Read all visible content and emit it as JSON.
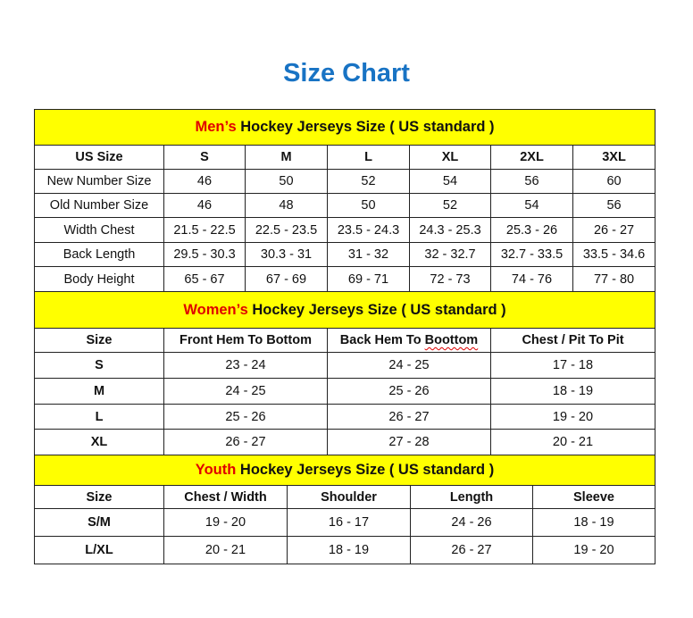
{
  "title": "Size Chart",
  "colors": {
    "title": "#1873c4",
    "header_bg": "#ffff00",
    "accent_text": "#e00000"
  },
  "mens": {
    "heading_accent": "Men’s",
    "heading_rest": " Hockey Jerseys Size ( US standard )",
    "columns": [
      "US Size",
      "S",
      "M",
      "L",
      "XL",
      "2XL",
      "3XL"
    ],
    "rows": [
      [
        "New Number Size",
        "46",
        "50",
        "52",
        "54",
        "56",
        "60"
      ],
      [
        "Old Number Size",
        "46",
        "48",
        "50",
        "52",
        "54",
        "56"
      ],
      [
        "Width Chest",
        "21.5 - 22.5",
        "22.5 - 23.5",
        "23.5 - 24.3",
        "24.3 - 25.3",
        "25.3 - 26",
        "26 - 27"
      ],
      [
        "Back Length",
        "29.5 - 30.3",
        "30.3 - 31",
        "31 - 32",
        "32 - 32.7",
        "32.7 - 33.5",
        "33.5 - 34.6"
      ],
      [
        "Body Height",
        "65 - 67",
        "67 - 69",
        "69 - 71",
        "72 - 73",
        "74 - 76",
        "77 - 80"
      ]
    ]
  },
  "womens": {
    "heading_accent": "Women’s",
    "heading_rest": " Hockey Jerseys Size ( US standard )",
    "columns": [
      "Size",
      "Front Hem To Bottom",
      "Back Hem To Boottom",
      "Chest / Pit To Pit"
    ],
    "rows": [
      [
        "S",
        "23 - 24",
        "24 - 25",
        "17 - 18"
      ],
      [
        "M",
        "24 - 25",
        "25 - 26",
        "18 - 19"
      ],
      [
        "L",
        "25 - 26",
        "26 - 27",
        "19 - 20"
      ],
      [
        "XL",
        "26 - 27",
        "27 - 28",
        "20 - 21"
      ]
    ]
  },
  "youth": {
    "heading_accent": "Youth",
    "heading_rest": " Hockey Jerseys Size ( US standard )",
    "columns": [
      "Size",
      "Chest / Width",
      "Shoulder",
      "Length",
      "Sleeve"
    ],
    "rows": [
      [
        "S/M",
        "19 - 20",
        "16 - 17",
        "24 - 26",
        "18 - 19"
      ],
      [
        "L/XL",
        "20 - 21",
        "18 - 19",
        "26 - 27",
        "19 - 20"
      ]
    ]
  }
}
